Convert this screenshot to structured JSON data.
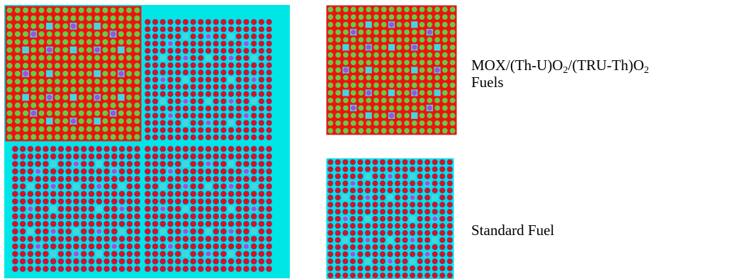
{
  "colors": {
    "coolant": "#00e5e5",
    "fuel_matrix_red": "#ee1111",
    "mox_pin_green": "#66cc44",
    "standard_pin_red": "#dd1111",
    "standard_pin_rim": "#8b2a8b",
    "control_rod_purple": "#9955dd",
    "guide_tube_cyan": "#44d6e0",
    "frame_border": "#cc2222"
  },
  "assemblies": {
    "core_quadrants": [
      "mox",
      "standard",
      "standard",
      "standard"
    ],
    "mox_sample": "mox",
    "standard_sample": "standard"
  },
  "labels": {
    "mox": {
      "prefix": "MOX/(Th-U)O",
      "sub1": "2",
      "middle": "/(TRU-Th)O",
      "sub2": "2",
      "line2": "Fuels"
    },
    "standard": "Standard Fuel"
  }
}
